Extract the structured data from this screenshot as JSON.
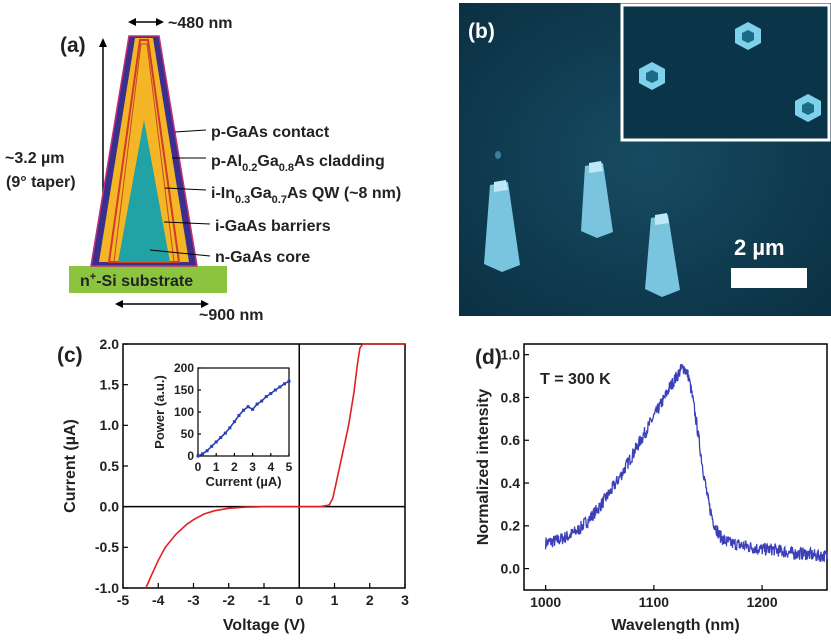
{
  "panel_a": {
    "letter": "(a)",
    "top_width": "~480 nm",
    "height_main": "~3.2 µm",
    "height_sub": "(9° taper)",
    "bottom_width": "~900 nm",
    "substrate": {
      "pre": "n",
      "sup": "+",
      "post": "-Si substrate"
    },
    "layers": [
      {
        "id": "contact",
        "text": "p-GaAs contact"
      },
      {
        "id": "cladding",
        "parts": [
          "p-Al",
          "0.2",
          "Ga",
          "0.8",
          "As cladding"
        ]
      },
      {
        "id": "qw",
        "parts": [
          "i-In",
          "0.3",
          "Ga",
          "0.7",
          "As QW (~8 nm)"
        ]
      },
      {
        "id": "barriers",
        "text": "i-GaAs barriers"
      },
      {
        "id": "core",
        "text": "n-GaAs core"
      }
    ],
    "colors": {
      "contact": "#3a2f8c",
      "cladding": "#f5b625",
      "qw": "#d23a2b",
      "core": "#21a3a6",
      "substrate": "#8bc53f"
    }
  },
  "panel_b": {
    "letter": "(b)",
    "scale_bar": "2 µm",
    "colors": {
      "background": "#0e3c52",
      "pillar": "#7fcbe6"
    }
  },
  "panel_c": {
    "letter": "(c)",
    "chart_data": {
      "type": "line",
      "xlabel": "Voltage (V)",
      "ylabel": "Current (µA)",
      "xlim": [
        -5,
        3
      ],
      "ylim": [
        -1.0,
        2.0
      ],
      "xticks": [
        -5,
        -4,
        -3,
        -2,
        -1,
        0,
        1,
        2,
        3
      ],
      "yticks": [
        -1.0,
        -0.5,
        0.0,
        0.5,
        1.0,
        1.5,
        2.0
      ],
      "tick_labels_x": [
        "-5",
        "-4",
        "-3",
        "-2",
        "-1",
        "0",
        "1",
        "2",
        "3"
      ],
      "tick_labels_y": [
        "-1.0",
        "-0.5",
        "0.0",
        "0.5",
        "1.0",
        "1.5",
        "2.0"
      ],
      "color": "#e02020",
      "series": [
        {
          "x": [
            -4.35,
            -4.2,
            -4.0,
            -3.8,
            -3.5,
            -3.2,
            -3.0,
            -2.7,
            -2.4,
            -2.0,
            -1.5,
            -1.0,
            0.0,
            0.6,
            0.85,
            0.95,
            1.05,
            1.2,
            1.4,
            1.55,
            1.65,
            1.72,
            1.8,
            3.0
          ],
          "y": [
            -1.0,
            -0.85,
            -0.66,
            -0.5,
            -0.34,
            -0.22,
            -0.16,
            -0.09,
            -0.05,
            -0.02,
            -0.005,
            0.0,
            0.0,
            0.0,
            0.02,
            0.1,
            0.3,
            0.6,
            1.0,
            1.4,
            1.75,
            1.95,
            2.0,
            2.0
          ]
        }
      ]
    },
    "inset_chart_data": {
      "type": "line",
      "xlabel": "Current (µA)",
      "ylabel": "Power (a.u.)",
      "xlim": [
        0,
        5
      ],
      "ylim": [
        0,
        200
      ],
      "xticks": [
        0,
        1,
        2,
        3,
        4,
        5
      ],
      "yticks": [
        0,
        50,
        100,
        150,
        200
      ],
      "tick_labels_x": [
        "0",
        "1",
        "2",
        "3",
        "4",
        "5"
      ],
      "tick_labels_y": [
        "0",
        "50",
        "100",
        "150",
        "200"
      ],
      "color": "#2b3fb0",
      "series": [
        {
          "x": [
            0,
            0.25,
            0.5,
            0.75,
            1.0,
            1.25,
            1.5,
            1.75,
            2.0,
            2.25,
            2.5,
            2.75,
            3.0,
            3.25,
            3.5,
            3.75,
            4.0,
            4.25,
            4.5,
            4.75,
            5.0
          ],
          "y": [
            0,
            5,
            12,
            22,
            32,
            42,
            52,
            64,
            78,
            92,
            104,
            112,
            106,
            118,
            125,
            135,
            142,
            150,
            157,
            164,
            170
          ]
        }
      ]
    }
  },
  "panel_d": {
    "letter": "(d)",
    "annotation": "T = 300 K",
    "chart_data": {
      "type": "line",
      "xlabel": "Wavelength (nm)",
      "ylabel": "Normalized intensity",
      "xlim": [
        980,
        1260
      ],
      "ylim": [
        -0.1,
        1.05
      ],
      "xticks": [
        1000,
        1100,
        1200
      ],
      "yticks": [
        0.0,
        0.2,
        0.4,
        0.6,
        0.8,
        1.0
      ],
      "tick_labels_x": [
        "1000",
        "1100",
        "1200"
      ],
      "tick_labels_y": [
        "0.0",
        "0.2",
        "0.4",
        "0.6",
        "0.8",
        "1.0"
      ],
      "color": "#3b3fb8",
      "series": [
        {
          "x": [
            1000,
            1010,
            1020,
            1030,
            1040,
            1050,
            1060,
            1070,
            1080,
            1090,
            1100,
            1110,
            1115,
            1120,
            1125,
            1128,
            1132,
            1135,
            1140,
            1145,
            1150,
            1155,
            1160,
            1165,
            1170,
            1180,
            1190,
            1200,
            1210,
            1220,
            1230,
            1240,
            1250,
            1260
          ],
          "y": [
            0.12,
            0.13,
            0.15,
            0.18,
            0.23,
            0.29,
            0.36,
            0.44,
            0.53,
            0.62,
            0.71,
            0.8,
            0.85,
            0.89,
            0.93,
            0.94,
            0.9,
            0.82,
            0.66,
            0.48,
            0.32,
            0.22,
            0.16,
            0.13,
            0.12,
            0.11,
            0.1,
            0.09,
            0.09,
            0.08,
            0.07,
            0.07,
            0.06,
            0.06
          ]
        }
      ]
    }
  }
}
